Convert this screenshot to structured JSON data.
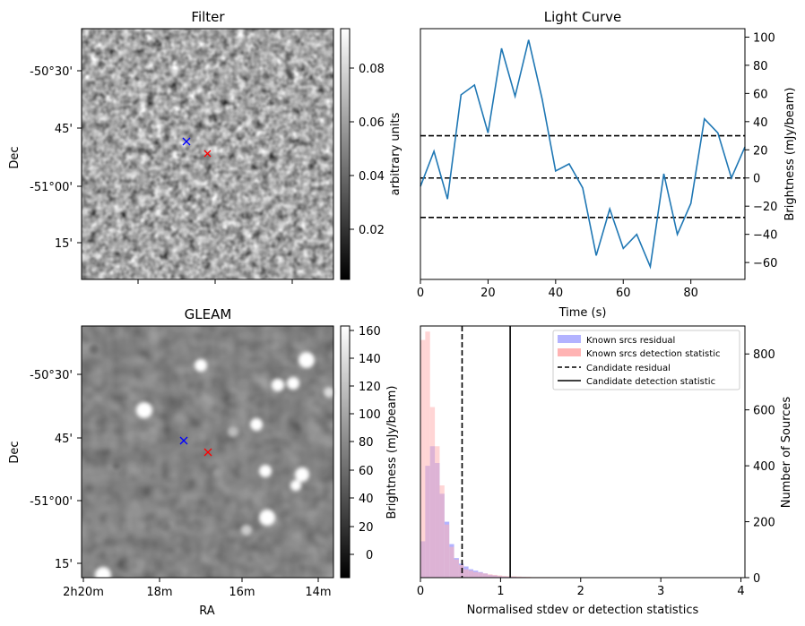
{
  "panels": {
    "filter": {
      "title": "Filter",
      "ylabel": "Dec",
      "yticks": [
        "-50°30'",
        "45'",
        "-51°00'",
        "15'"
      ],
      "colorbar_label": "arbitrary units",
      "colorbar_ticks": [
        "0.08",
        "0.06",
        "0.04",
        "0.02"
      ],
      "markers": [
        {
          "color": "#0000ff",
          "symbol": "x"
        },
        {
          "color": "#ff0000",
          "symbol": "x"
        }
      ]
    },
    "gleam": {
      "title": "GLEAM",
      "ylabel": "Dec",
      "xlabel": "RA",
      "yticks": [
        "-50°30'",
        "45'",
        "-51°00'",
        "15'"
      ],
      "xticks": [
        "2h20m",
        "18m",
        "16m",
        "14m"
      ],
      "colorbar_label": "Brightness (mJy/beam)",
      "colorbar_ticks": [
        "160",
        "140",
        "120",
        "100",
        "80",
        "60",
        "40",
        "20",
        "0"
      ],
      "markers": [
        {
          "color": "#0000ff",
          "symbol": "x"
        },
        {
          "color": "#ff0000",
          "symbol": "x"
        }
      ]
    }
  },
  "chart_data": [
    {
      "type": "line",
      "title": "Light Curve",
      "xlabel": "Time (s)",
      "ylabel": "Brightness (mJy/beam)",
      "xlim": [
        0,
        96
      ],
      "ylim": [
        -72,
        106
      ],
      "xticks": [
        0,
        20,
        40,
        60,
        80
      ],
      "yticks": [
        -60,
        -40,
        -20,
        0,
        20,
        40,
        60,
        80,
        100
      ],
      "color": "#1f77b4",
      "series": [
        {
          "x": [
            0,
            4,
            8,
            12,
            16,
            20,
            24,
            28,
            32,
            36,
            40,
            44,
            48,
            52,
            56,
            60,
            64,
            68,
            72,
            76,
            80,
            84,
            88,
            92,
            96
          ],
          "values": [
            -6,
            19,
            -15,
            59,
            66,
            32,
            92,
            58,
            98,
            56,
            5,
            10,
            -7,
            -55,
            -22,
            -50,
            -40,
            -63,
            3,
            -40,
            -18,
            42,
            32,
            0,
            22
          ]
        }
      ],
      "hlines": [
        30,
        0,
        -28
      ],
      "hline_style": "dashed"
    },
    {
      "type": "bar",
      "xlabel": "Normalised stdev or detection statistics",
      "ylabel": "Number of Sources",
      "xlim": [
        0,
        4.05
      ],
      "ylim": [
        0,
        900
      ],
      "xticks": [
        0,
        1,
        2,
        3,
        4
      ],
      "yticks": [
        0,
        200,
        400,
        600,
        800
      ],
      "bin_width": 0.06,
      "series": [
        {
          "name": "Known srcs residual",
          "color": "#b3b3ff",
          "values": [
            130,
            400,
            470,
            410,
            300,
            200,
            120,
            70,
            50,
            40,
            30,
            25,
            20,
            15,
            10,
            8,
            5,
            4,
            3,
            3,
            2,
            2,
            1,
            1,
            1,
            1,
            1,
            0,
            0,
            0,
            0,
            0,
            0,
            0,
            0,
            0,
            0,
            0,
            0,
            0,
            0,
            0,
            0,
            0,
            0,
            0,
            0,
            0,
            0,
            0,
            0,
            0,
            0,
            0,
            0,
            0,
            0,
            0,
            0,
            0,
            0,
            0,
            0,
            0,
            0,
            0,
            0
          ]
        },
        {
          "name": "Known srcs detection statistic",
          "color": "#ffb3b3",
          "values": [
            850,
            880,
            610,
            470,
            330,
            190,
            110,
            65,
            45,
            30,
            25,
            20,
            18,
            15,
            12,
            10,
            8,
            6,
            5,
            5,
            4,
            3,
            3,
            2,
            2,
            2,
            2,
            1,
            1,
            1,
            1,
            1,
            1,
            1,
            1,
            1,
            1,
            1,
            1,
            1,
            1,
            1,
            1,
            1,
            1,
            1,
            1,
            1,
            1,
            1,
            1,
            1,
            1,
            1,
            1,
            1,
            1,
            1,
            1,
            1,
            1,
            1,
            1,
            1,
            1,
            1,
            1
          ]
        }
      ],
      "vlines": [
        {
          "name": "Candidate residual",
          "x": 0.52,
          "style": "dashed"
        },
        {
          "name": "Candidate detection statistic",
          "x": 1.12,
          "style": "solid"
        }
      ],
      "legend_position": "top-right"
    }
  ]
}
